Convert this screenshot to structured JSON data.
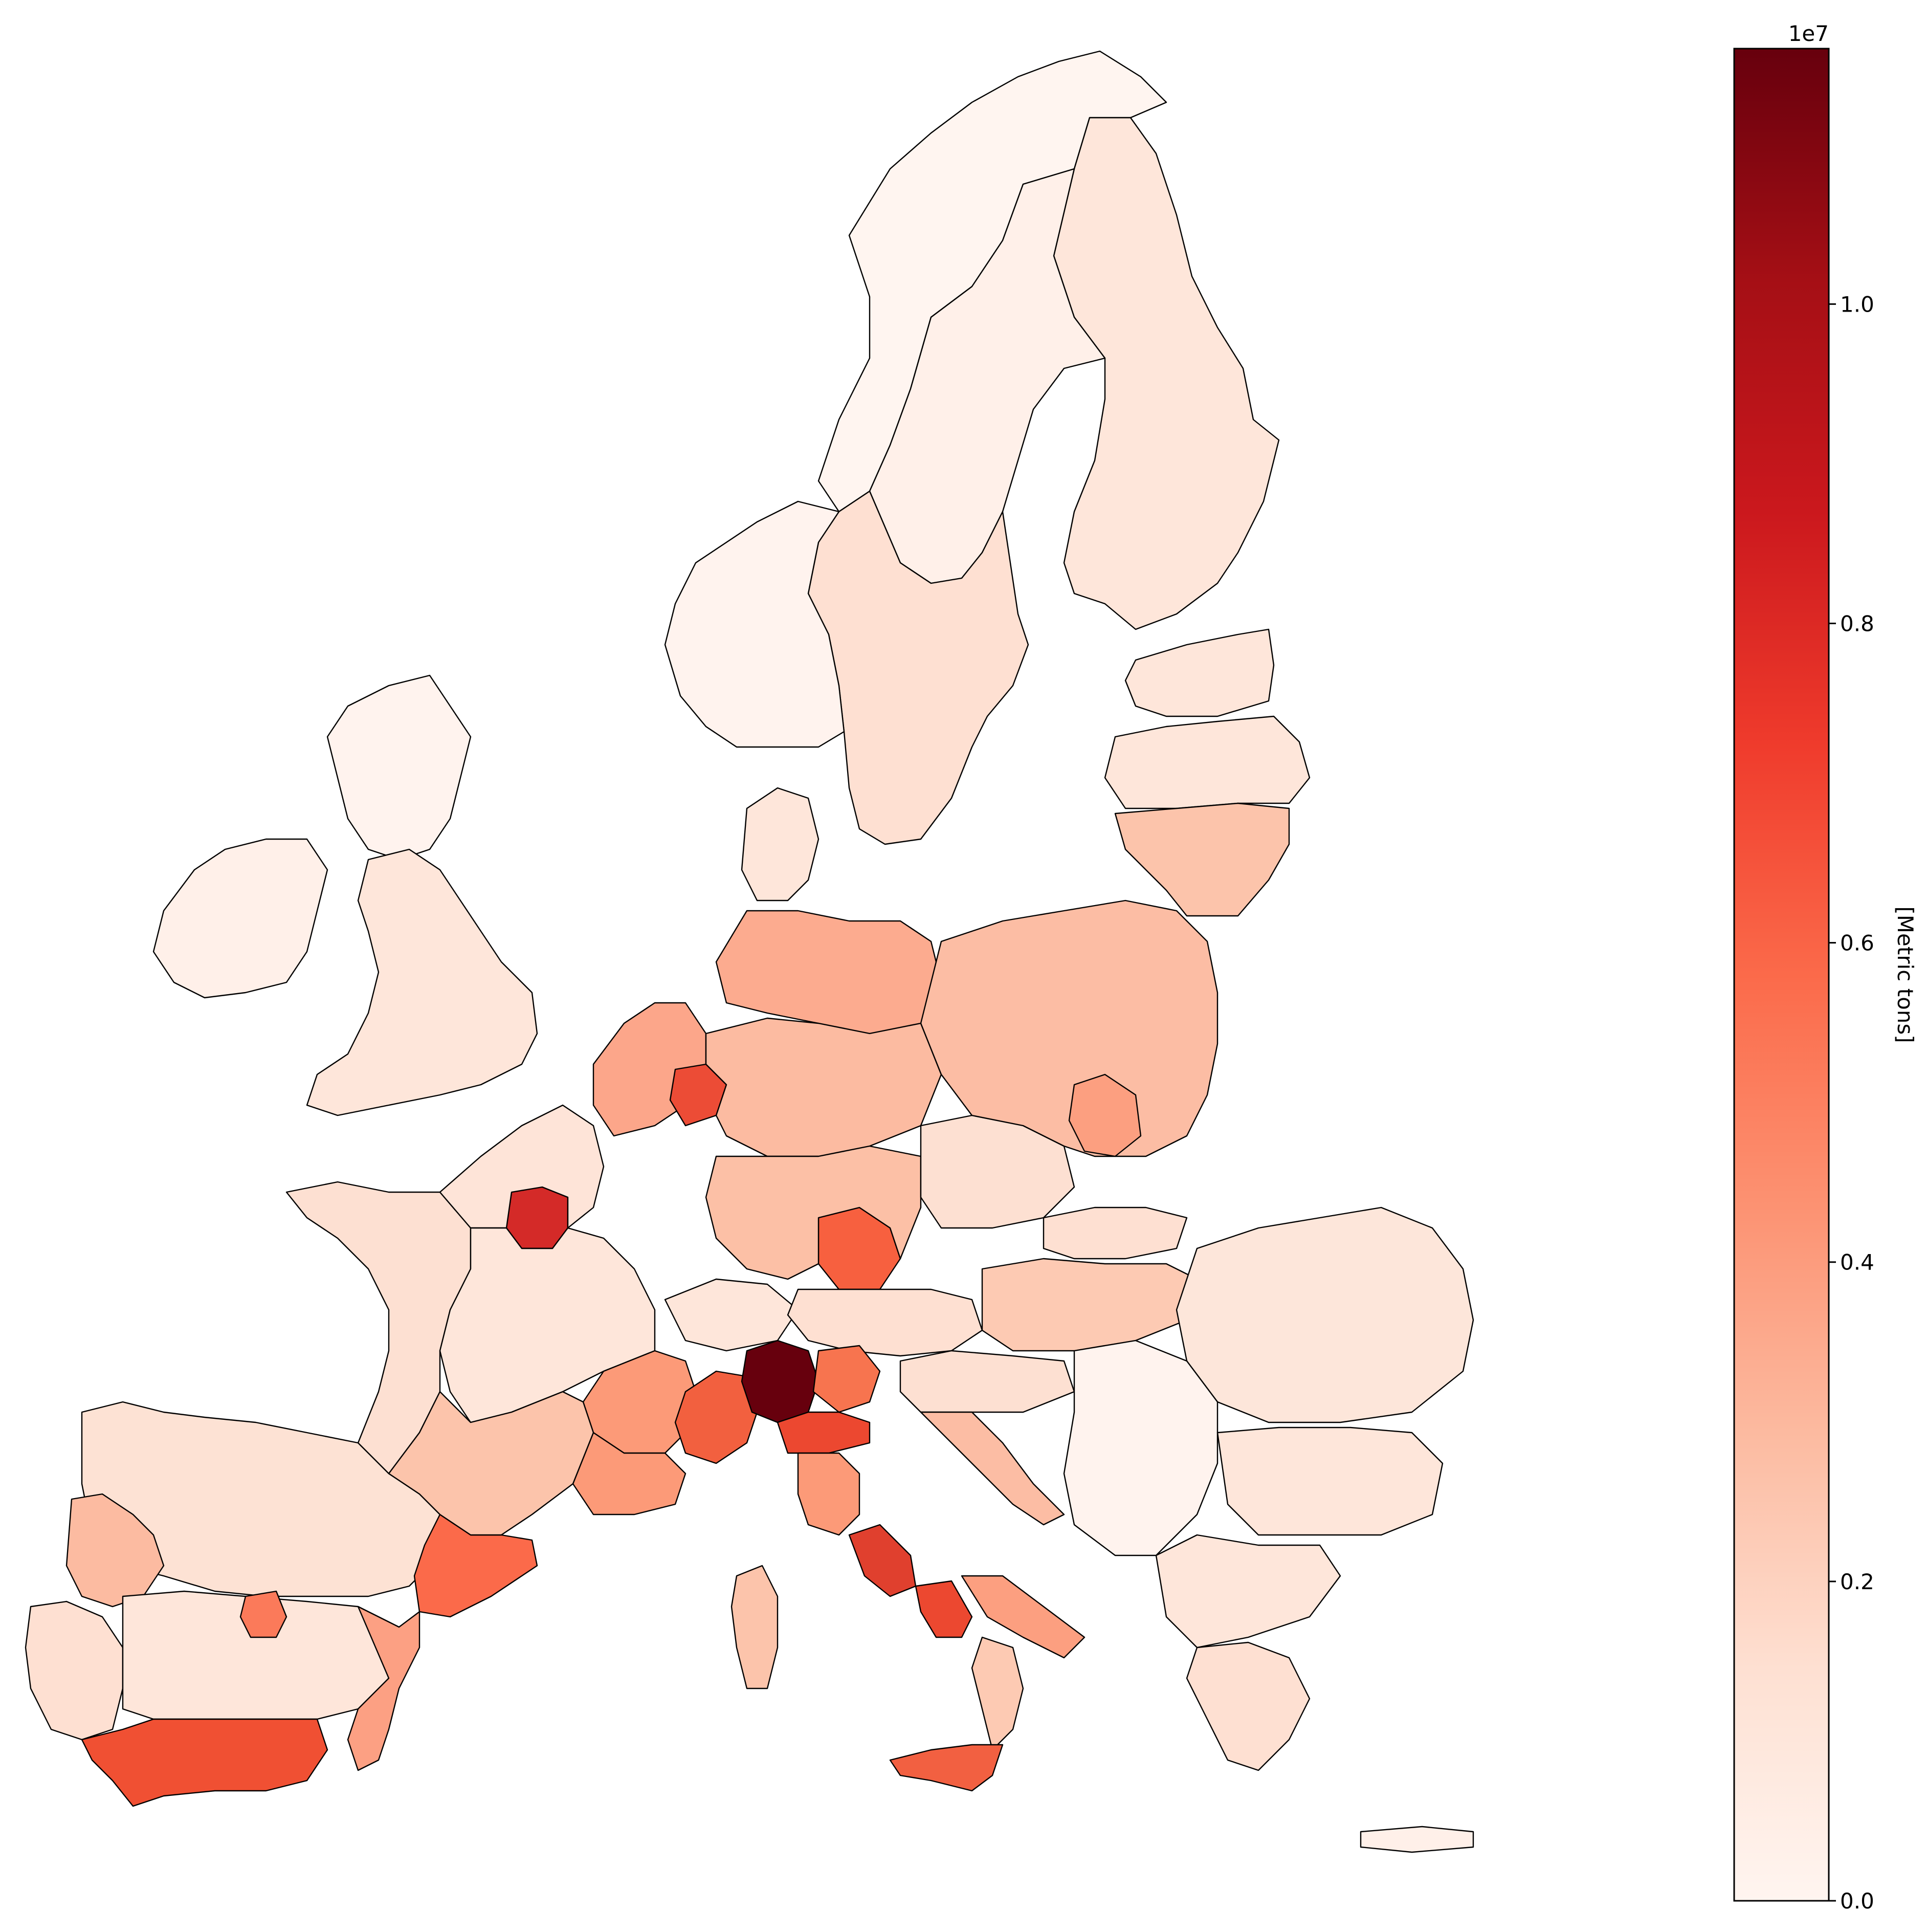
{
  "colorbar": {
    "label": "[Metric tons]",
    "exponent": "1e7",
    "vmin": 0.0,
    "vmax": 1.16,
    "ticks": [
      {
        "value": 0.0,
        "label": "0.0"
      },
      {
        "value": 0.2,
        "label": "0.2"
      },
      {
        "value": 0.4,
        "label": "0.4"
      },
      {
        "value": 0.6,
        "label": "0.6"
      },
      {
        "value": 0.8,
        "label": "0.8"
      },
      {
        "value": 1.0,
        "label": "1.0"
      }
    ],
    "colormap": "Reds",
    "stops": [
      "#fff5f0",
      "#fee0d2",
      "#fcbba1",
      "#fc9272",
      "#fb6a4a",
      "#ef3b2c",
      "#cb181d",
      "#a50f15",
      "#67000d"
    ]
  },
  "map": {
    "type": "choropleth",
    "area": "Europe NUTS-2 regions",
    "border_color": "#000000",
    "highlighted_regions": [
      {
        "id": "lombardia",
        "value": 1.16
      },
      {
        "id": "ile-de-france",
        "value": 0.85
      },
      {
        "id": "andalucia",
        "value": 0.68
      },
      {
        "id": "sicilia",
        "value": 0.62
      },
      {
        "id": "campania",
        "value": 0.72
      },
      {
        "id": "lazio",
        "value": 0.74
      },
      {
        "id": "catalonia",
        "value": 0.62
      },
      {
        "id": "piemonte",
        "value": 0.58
      },
      {
        "id": "emilia-romagna",
        "value": 0.55
      },
      {
        "id": "veneto",
        "value": 0.5
      },
      {
        "id": "rhone-alpes",
        "value": 0.42
      },
      {
        "id": "bayern-oberbayern",
        "value": 0.6
      },
      {
        "id": "stuttgart",
        "value": 0.55
      },
      {
        "id": "koeln",
        "value": 0.7
      },
      {
        "id": "duesseldorf",
        "value": 0.55
      },
      {
        "id": "valenciana",
        "value": 0.38
      },
      {
        "id": "madrid",
        "value": 0.55
      },
      {
        "id": "toscana",
        "value": 0.45
      },
      {
        "id": "puglia",
        "value": 0.4
      }
    ]
  }
}
